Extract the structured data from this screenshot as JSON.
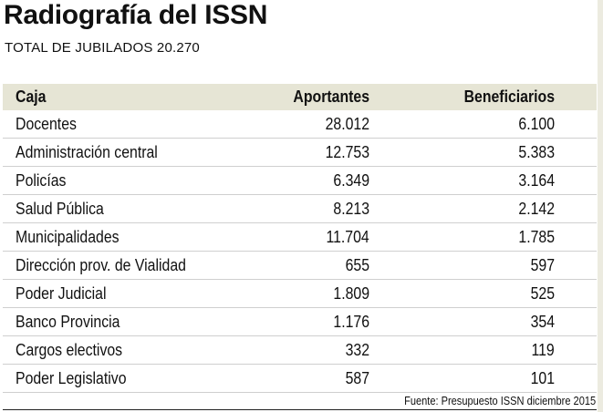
{
  "title": "Radiografía del ISSN",
  "subtitle": "TOTAL DE JUBILADOS 20.270",
  "source": "Fuente: Presupuesto ISSN diciembre 2015",
  "colors": {
    "header_bg": "#e6e5d5"
  },
  "chart_data": {
    "type": "table",
    "columns": [
      "Caja",
      "Aportantes",
      "Beneficiarios"
    ],
    "rows": [
      [
        "Docentes",
        "28.012",
        "6.100"
      ],
      [
        "Administración central",
        "12.753",
        "5.383"
      ],
      [
        "Policías",
        "6.349",
        "3.164"
      ],
      [
        "Salud Pública",
        "8.213",
        "2.142"
      ],
      [
        "Municipalidades",
        "11.704",
        "1.785"
      ],
      [
        "Dirección prov. de Vialidad",
        "655",
        "597"
      ],
      [
        "Poder Judicial",
        "1.809",
        "525"
      ],
      [
        "Banco Provincia",
        "1.176",
        "354"
      ],
      [
        "Cargos electivos",
        "332",
        "119"
      ],
      [
        "Poder Legislativo",
        "587",
        "101"
      ]
    ]
  }
}
